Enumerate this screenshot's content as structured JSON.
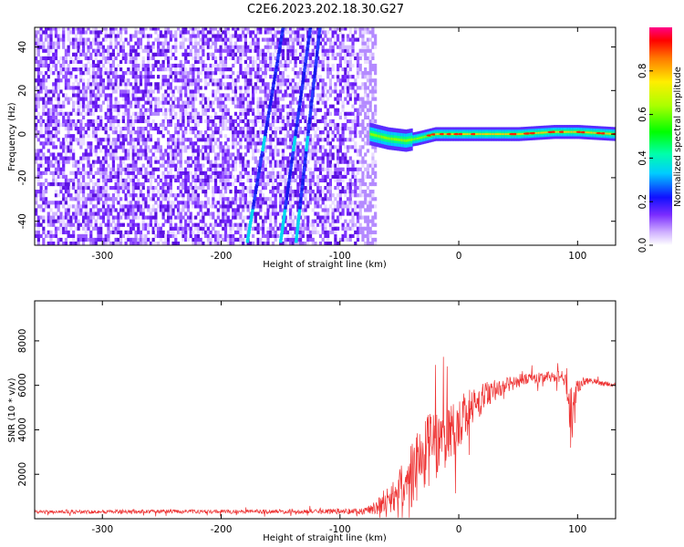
{
  "title": "C2E6.2023.202.18.30.G27",
  "chart_data": [
    {
      "type": "heatmap",
      "xlabel": "Height of straight line (km)",
      "ylabel": "Frequency (Hz)",
      "xlim": [
        -357,
        132
      ],
      "ylim": [
        -51,
        49
      ],
      "xticks": [
        -300,
        -200,
        -100,
        0,
        100
      ],
      "yticks": [
        -40,
        -20,
        0,
        20,
        40
      ],
      "noise_region_x": [
        -357,
        -70
      ],
      "signal_trace": {
        "x": [
          -75,
          -60,
          -45,
          -35,
          -20,
          0,
          20,
          50,
          80,
          100,
          132
        ],
        "freq_hz": [
          0,
          -2,
          -3,
          -2,
          0,
          0,
          0,
          0,
          1,
          1,
          0
        ]
      },
      "streaks": [
        {
          "x": [
            -178,
            -148
          ],
          "freq_hz": [
            -49,
            49
          ]
        },
        {
          "x": [
            -150,
            -125
          ],
          "freq_hz": [
            -49,
            49
          ]
        },
        {
          "x": [
            -137,
            -117
          ],
          "freq_hz": [
            -49,
            49
          ]
        }
      ],
      "colorbar": {
        "label": "Normalized spectral amplitude",
        "range": [
          0,
          1
        ],
        "ticks": [
          0.0,
          0.2,
          0.4,
          0.6,
          0.8
        ],
        "tick_labels": [
          "0.0",
          "0.2",
          "0.4",
          "0.6",
          "0.8"
        ]
      }
    },
    {
      "type": "line",
      "xlabel": "Height of straight line (km)",
      "ylabel": "SNR (10 * v/v)",
      "xlim": [
        -357,
        132
      ],
      "ylim": [
        0,
        9800
      ],
      "xticks": [
        -300,
        -200,
        -100,
        0,
        100
      ],
      "yticks": [
        2000,
        4000,
        6000,
        8000
      ],
      "color": "#ee3333",
      "envelope": {
        "x": [
          -357,
          -250,
          -200,
          -120,
          -80,
          -60,
          -50,
          -40,
          -30,
          -20,
          -10,
          0,
          10,
          20,
          30,
          40,
          50,
          60,
          80,
          90,
          95,
          100,
          110,
          120,
          132
        ],
        "mean": [
          300,
          330,
          320,
          330,
          340,
          700,
          1300,
          2000,
          2700,
          3300,
          3800,
          4300,
          4900,
          5400,
          5800,
          6000,
          6200,
          6300,
          6400,
          6300,
          4300,
          6100,
          6200,
          6100,
          6000
        ],
        "amplitude": [
          80,
          90,
          90,
          100,
          150,
          500,
          900,
          1500,
          1800,
          1600,
          1400,
          1300,
          1000,
          700,
          500,
          350,
          300,
          250,
          250,
          350,
          1800,
          400,
          150,
          120,
          100
        ]
      }
    }
  ]
}
